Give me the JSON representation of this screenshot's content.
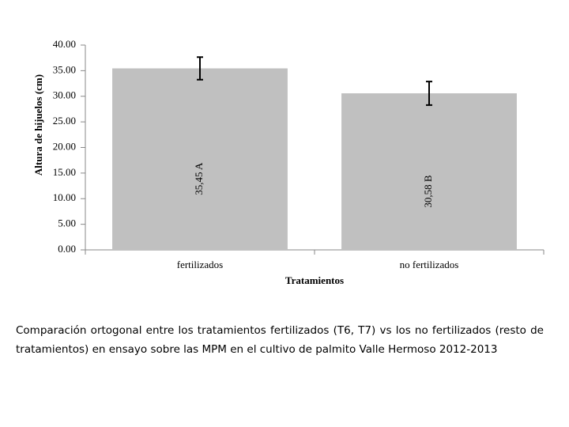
{
  "chart_data": {
    "type": "bar",
    "y_label": "Altura de hijuelos (cm)",
    "x_label": "Tratamientos",
    "categories": [
      "fertilizados",
      "no fertilizados"
    ],
    "values": [
      35.45,
      30.58
    ],
    "value_labels": [
      "35,45  A",
      "30,58  B"
    ],
    "errors": [
      2.2,
      2.3
    ],
    "color": "#c0c0c0",
    "ylim": [
      0,
      40
    ],
    "yticks": [
      {
        "value": 0,
        "label": "0.00"
      },
      {
        "value": 5,
        "label": "5.00"
      },
      {
        "value": 10,
        "label": "10.00"
      },
      {
        "value": 15,
        "label": "15.00"
      },
      {
        "value": 20,
        "label": "20.00"
      },
      {
        "value": 25,
        "label": "25.00"
      },
      {
        "value": 30,
        "label": "30.00"
      },
      {
        "value": 35,
        "label": "35.00"
      },
      {
        "value": 40,
        "label": "40.00"
      }
    ],
    "grid": false
  },
  "caption": "Comparación ortogonal entre los tratamientos fertilizados (T6, T7) vs los no fertilizados (resto de tratamientos) en ensayo sobre las  MPM en el cultivo de palmito Valle Hermoso 2012-2013"
}
